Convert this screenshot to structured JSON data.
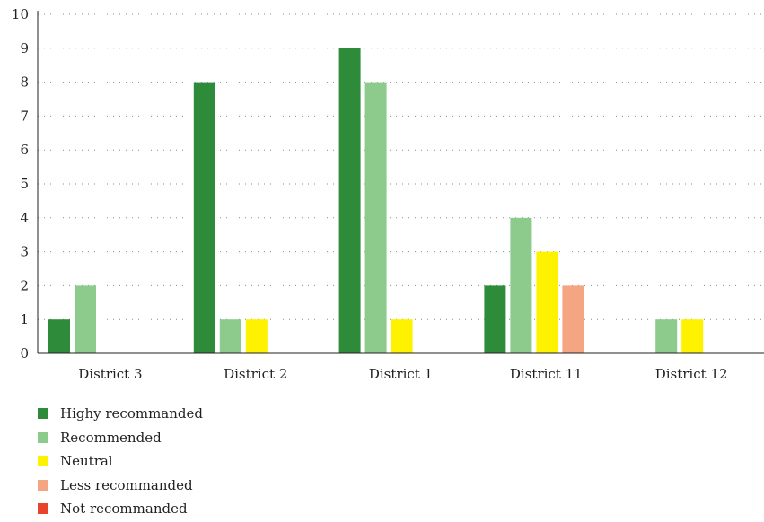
{
  "chart_data": {
    "type": "bar",
    "categories": [
      "District 3",
      "District 2",
      "District 1",
      "District 11",
      "District 12"
    ],
    "series": [
      {
        "name": "Highy recommanded",
        "color": "#2e8b3a",
        "values": [
          1,
          8,
          9,
          2,
          0
        ]
      },
      {
        "name": "Recommended",
        "color": "#8ccb8c",
        "values": [
          2,
          1,
          8,
          4,
          1
        ]
      },
      {
        "name": "Neutral",
        "color": "#fff200",
        "values": [
          0,
          1,
          1,
          3,
          1
        ]
      },
      {
        "name": "Less recommanded",
        "color": "#f4a582",
        "values": [
          0,
          0,
          0,
          2,
          0
        ]
      },
      {
        "name": "Not recommanded",
        "color": "#e8432b",
        "values": [
          0,
          0,
          0,
          0,
          0
        ]
      }
    ],
    "yticks": [
      "0",
      "1",
      "2",
      "3",
      "4",
      "5",
      "6",
      "7",
      "8",
      "9",
      "10"
    ],
    "ylim": [
      0,
      10
    ],
    "grid": "dotted horizontal",
    "legend_position": "bottom-left",
    "title": "",
    "xlabel": "",
    "ylabel": ""
  }
}
